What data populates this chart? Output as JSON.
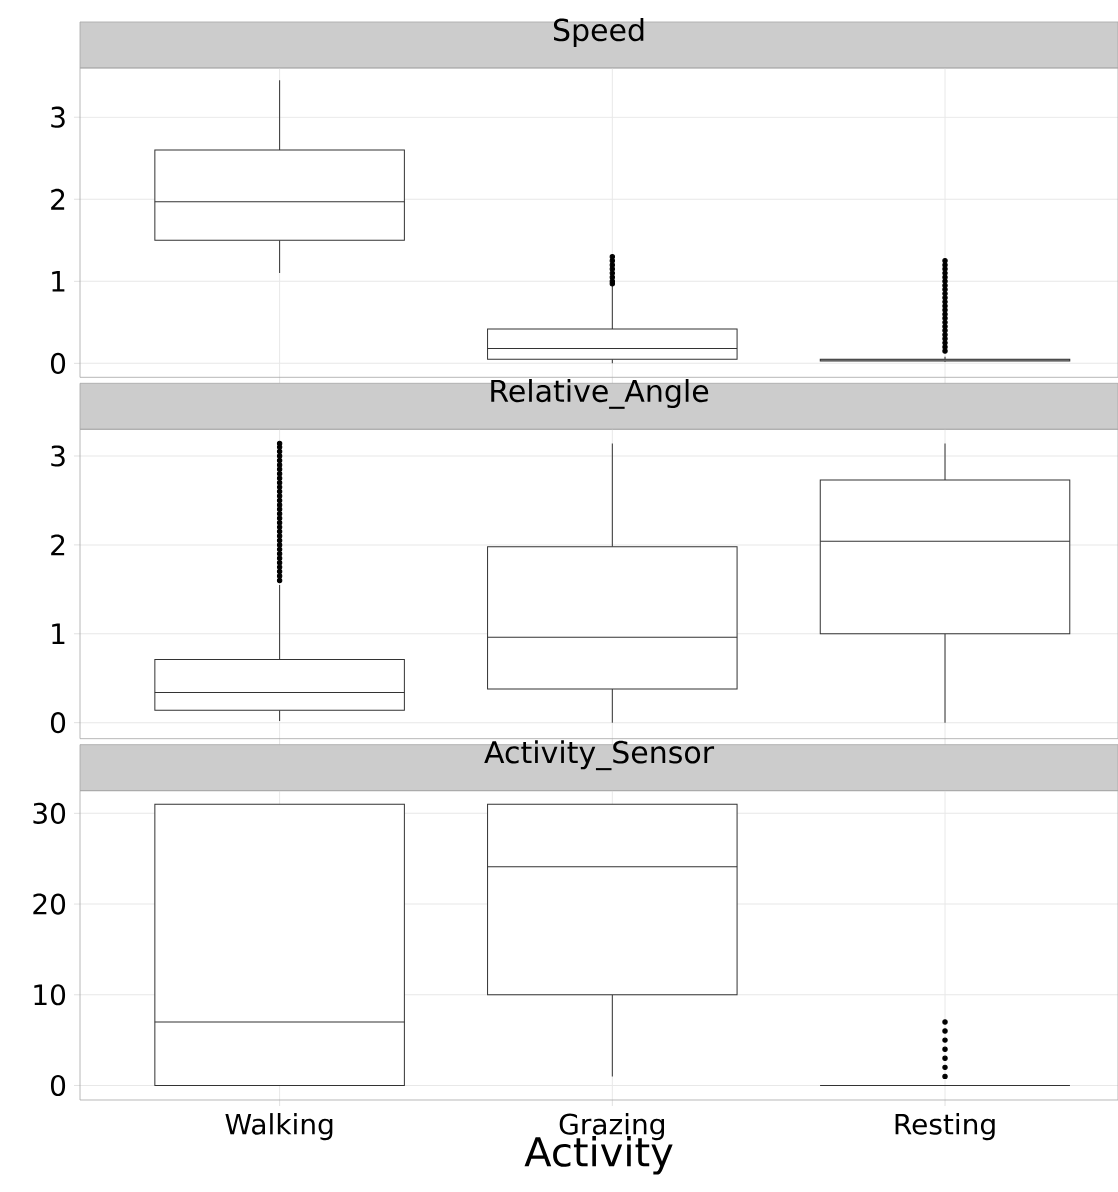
{
  "chart_data": [
    {
      "type": "box",
      "title": "Speed",
      "ylim": [
        -0.17,
        3.6
      ],
      "yticks": [
        0,
        1,
        2,
        3
      ],
      "grid": true,
      "tick_labels": "y",
      "boxes": [
        {
          "low": 1.1,
          "q1": 1.5,
          "median": 1.97,
          "q3": 2.6,
          "high": 3.45
        },
        {
          "low": 0.0,
          "q1": 0.05,
          "median": 0.18,
          "q3": 0.42,
          "high": 0.95,
          "outliers": [
            0.97,
            1.0,
            1.05,
            1.1,
            1.15,
            1.2,
            1.25,
            1.3
          ]
        },
        {
          "low": 0.02,
          "q1": 0.03,
          "median": 0.04,
          "q3": 0.05,
          "high": 0.08,
          "outliers": [
            0.15,
            0.2,
            0.25,
            0.3,
            0.35,
            0.4,
            0.45,
            0.5,
            0.55,
            0.6,
            0.65,
            0.7,
            0.75,
            0.8,
            0.85,
            0.9,
            0.95,
            1.0,
            1.05,
            1.1,
            1.15,
            1.2,
            1.25
          ]
        }
      ]
    },
    {
      "type": "box",
      "title": "Relative_Angle",
      "ylim": [
        -0.18,
        3.3
      ],
      "yticks": [
        0,
        1,
        2,
        3
      ],
      "grid": true,
      "tick_labels": "y",
      "boxes": [
        {
          "low": 0.02,
          "q1": 0.14,
          "median": 0.34,
          "q3": 0.71,
          "high": 1.55,
          "outliers": [
            1.6,
            1.65,
            1.7,
            1.75,
            1.8,
            1.85,
            1.9,
            1.95,
            2.0,
            2.05,
            2.1,
            2.15,
            2.2,
            2.25,
            2.3,
            2.35,
            2.4,
            2.45,
            2.5,
            2.55,
            2.6,
            2.65,
            2.7,
            2.75,
            2.8,
            2.85,
            2.9,
            2.95,
            3.0,
            3.05,
            3.1,
            3.14
          ]
        },
        {
          "low": 0.0,
          "q1": 0.38,
          "median": 0.96,
          "q3": 1.98,
          "high": 3.14
        },
        {
          "low": 0.0,
          "q1": 1.0,
          "median": 2.04,
          "q3": 2.73,
          "high": 3.14
        }
      ]
    },
    {
      "type": "box",
      "title": "Activity_Sensor",
      "xlabel": "Activity",
      "categories": [
        "Walking",
        "Grazing",
        "Resting"
      ],
      "ylim": [
        -1.6,
        32.5
      ],
      "yticks": [
        0,
        10,
        20,
        30
      ],
      "grid": true,
      "boxes": [
        {
          "low": 0,
          "q1": 0,
          "median": 7,
          "q3": 31,
          "high": 31
        },
        {
          "low": 1,
          "q1": 10,
          "median": 24.1,
          "q3": 31,
          "high": 31
        },
        {
          "low": 0,
          "q1": 0,
          "median": 0,
          "q3": 0,
          "high": 0,
          "outliers": [
            1,
            2,
            3,
            4,
            5,
            6,
            7
          ]
        }
      ]
    }
  ]
}
